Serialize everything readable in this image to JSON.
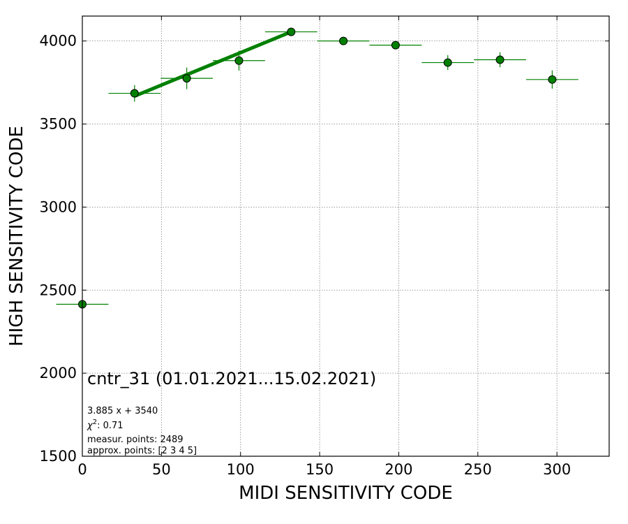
{
  "colors": {
    "series": "#008000",
    "marker_edge": "#000000",
    "grid": "#808080",
    "frame": "#000000"
  },
  "chart_data": {
    "type": "scatter",
    "xlabel": "MIDI SENSITIVITY CODE",
    "ylabel": "HIGH SENSITIVITY CODE",
    "xlim": [
      0,
      333
    ],
    "ylim": [
      1500,
      4150
    ],
    "xticks": [
      0,
      50,
      100,
      150,
      200,
      250,
      300
    ],
    "yticks": [
      1500,
      2000,
      2500,
      3000,
      3500,
      4000
    ],
    "grid": true,
    "series": [
      {
        "x": [
          0,
          33,
          66,
          99,
          132,
          165,
          198,
          231,
          264,
          297
        ],
        "y": [
          2415,
          3685,
          3775,
          3882,
          4055,
          4000,
          3975,
          3870,
          3887,
          3768
        ],
        "x_err": [
          16.5,
          16.5,
          16.5,
          16.5,
          16.5,
          16.5,
          16.5,
          16.5,
          16.5,
          16.5
        ],
        "y_err": [
          0,
          50,
          65,
          60,
          0,
          0,
          20,
          45,
          45,
          55
        ]
      }
    ],
    "fit_line": {
      "x": [
        33,
        132
      ],
      "y": [
        3668,
        4055
      ]
    },
    "annotations": {
      "title": "cntr_31 (01.01.2021...15.02.2021)",
      "fit": "3.885 x + 3540",
      "chi2_symbol": "χ",
      "chi2_sup": "2",
      "chi2_value": ": 0.71",
      "measur_points": "measur. points: 2489",
      "approx_points": "approx. points: [2 3 4 5]"
    }
  }
}
